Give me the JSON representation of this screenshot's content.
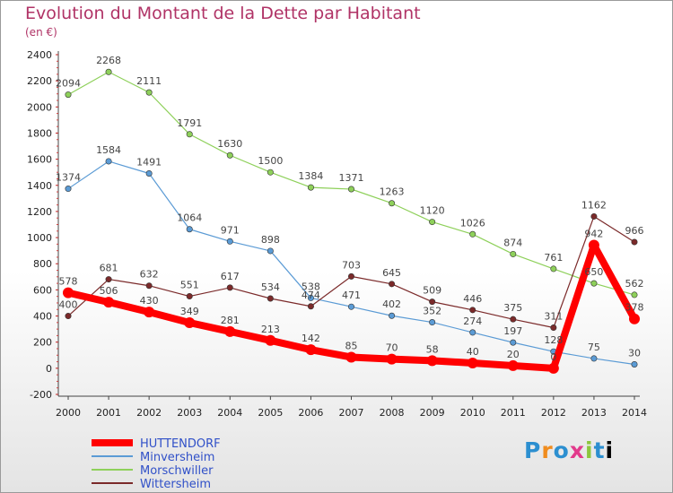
{
  "title": "Evolution du Montant de la Dette par Habitant",
  "subtitle": "(en €)",
  "brand": [
    "P",
    "r",
    "o",
    "x",
    "i",
    "t",
    "i"
  ],
  "chart_data": {
    "type": "line",
    "x": [
      "2000",
      "2001",
      "2002",
      "2003",
      "2004",
      "2005",
      "2006",
      "2007",
      "2008",
      "2009",
      "2010",
      "2011",
      "2012",
      "2013",
      "2014"
    ],
    "ylim": [
      -200,
      2400
    ],
    "yticks": [
      -200,
      0,
      200,
      400,
      600,
      800,
      1000,
      1200,
      1400,
      1600,
      1800,
      2000,
      2200,
      2400
    ],
    "grid": false,
    "legend_position": "bottom-left",
    "series": [
      {
        "name": "Minversheim",
        "color": "#5b9bd5",
        "values": [
          1374,
          1584,
          1491,
          1064,
          971,
          898,
          538,
          471,
          402,
          352,
          274,
          197,
          128,
          75,
          30
        ]
      },
      {
        "name": "Morschwiller",
        "color": "#8ed05a",
        "values": [
          2094,
          2268,
          2111,
          1791,
          1630,
          1500,
          1384,
          1371,
          1263,
          1120,
          1026,
          874,
          761,
          650,
          562
        ]
      },
      {
        "name": "Wittersheim",
        "color": "#7b2a2a",
        "values": [
          400,
          681,
          632,
          551,
          617,
          534,
          474,
          703,
          645,
          509,
          446,
          375,
          311,
          1162,
          966
        ]
      },
      {
        "name": "HUTTENDORF",
        "color": "#ff0000",
        "bold": true,
        "values": [
          578,
          506,
          430,
          349,
          281,
          213,
          142,
          85,
          70,
          58,
          40,
          20,
          0,
          942,
          378
        ]
      }
    ]
  }
}
